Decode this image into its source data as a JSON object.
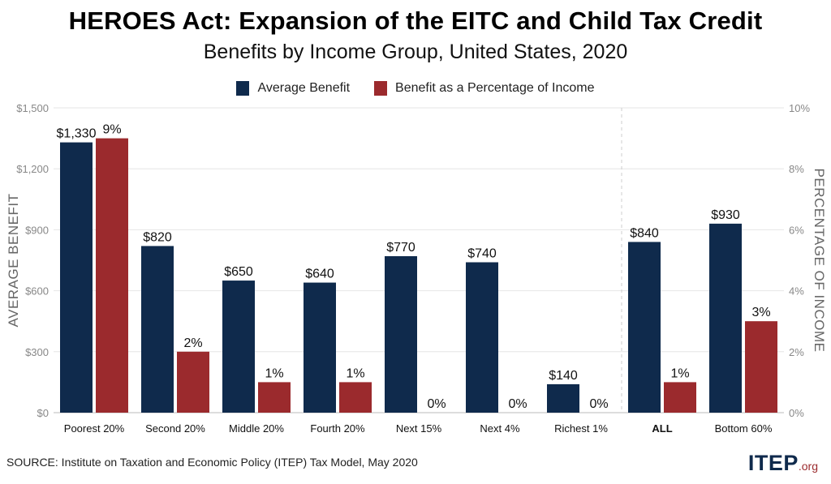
{
  "chart_data": {
    "type": "bar",
    "title": "HEROES Act: Expansion of the EITC and Child Tax Credit",
    "subtitle": "Benefits by Income Group, United States, 2020",
    "categories": [
      "Poorest 20%",
      "Second 20%",
      "Middle 20%",
      "Fourth 20%",
      "Next 15%",
      "Next 4%",
      "Richest 1%",
      "ALL",
      "Bottom 60%"
    ],
    "series": [
      {
        "name": "Average Benefit",
        "axis": "left",
        "color": "#0f2a4c",
        "values": [
          1330,
          820,
          650,
          640,
          770,
          740,
          140,
          840,
          930
        ],
        "labels": [
          "$1,330",
          "$820",
          "$650",
          "$640",
          "$770",
          "$740",
          "$140",
          "$840",
          "$930"
        ]
      },
      {
        "name": "Benefit as a Percentage of Income",
        "axis": "right",
        "color": "#9b2a2d",
        "values": [
          9,
          2,
          1,
          1,
          0,
          0,
          0,
          1,
          3
        ],
        "labels": [
          "9%",
          "2%",
          "1%",
          "1%",
          "0%",
          "0%",
          "0%",
          "1%",
          "3%"
        ]
      }
    ],
    "ylabel": "AVERAGE BENEFIT",
    "ylim": [
      0,
      1500
    ],
    "yticks": [
      "$0",
      "$300",
      "$600",
      "$900",
      "$1,200",
      "$1,500"
    ],
    "ylabel_right": "PERCENTAGE OF INCOME",
    "ylim_right": [
      0,
      10
    ],
    "yticks_right": [
      "0%",
      "2%",
      "4%",
      "6%",
      "8%",
      "10%"
    ],
    "legend_position": "top-center",
    "grid": true
  },
  "footer": {
    "source": "SOURCE: Institute on Taxation and Economic Policy (ITEP) Tax Model, May 2020",
    "logo_main": "ITEP",
    "logo_suffix": ".org"
  }
}
